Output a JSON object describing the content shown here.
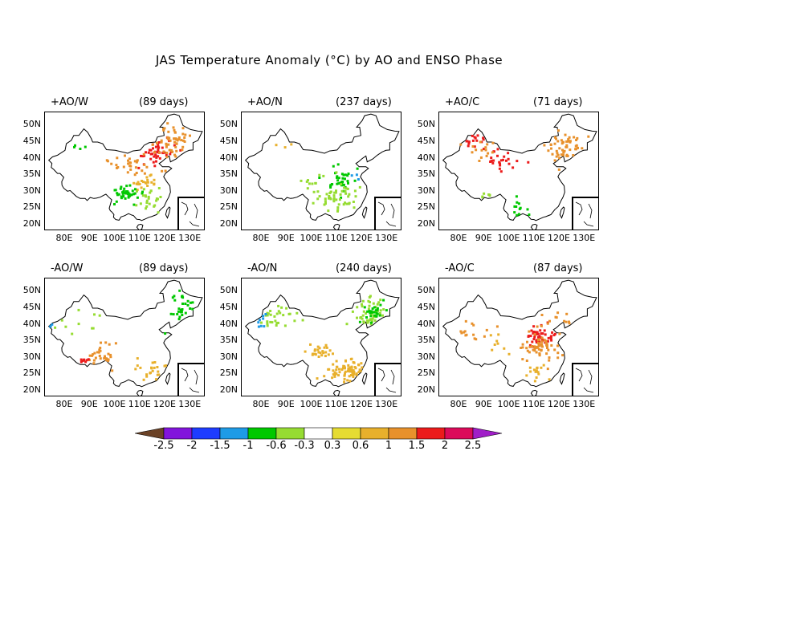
{
  "title": "JAS Temperature Anomaly (°C) by AO and ENSO Phase",
  "lat_ticks": [
    "50N",
    "45N",
    "40N",
    "35N",
    "30N",
    "25N",
    "20N"
  ],
  "lon_ticks": [
    "80E",
    "90E",
    "100E",
    "110E",
    "120E",
    "130E"
  ],
  "panels": [
    {
      "phase": "+AO/W",
      "days": "(89 days)",
      "clusters": [
        {
          "lon": 116,
          "lat": 42,
          "n": 45,
          "spread": [
            6,
            3
          ],
          "color": "#ec1b1b"
        },
        {
          "lon": 123,
          "lat": 45,
          "n": 55,
          "spread": [
            6,
            5
          ],
          "color": "#e8912c"
        },
        {
          "lon": 107,
          "lat": 38,
          "n": 30,
          "spread": [
            6,
            3
          ],
          "color": "#e8912c"
        },
        {
          "lon": 111,
          "lat": 33,
          "n": 22,
          "spread": [
            5,
            3
          ],
          "color": "#e8b02c"
        },
        {
          "lon": 104,
          "lat": 29,
          "n": 40,
          "spread": [
            5,
            3
          ],
          "color": "#00c800"
        },
        {
          "lon": 113,
          "lat": 27,
          "n": 25,
          "spread": [
            6,
            3
          ],
          "color": "#96dc32"
        },
        {
          "lon": 86,
          "lat": 44,
          "n": 4,
          "spread": [
            3,
            1
          ],
          "color": "#00c800"
        }
      ]
    },
    {
      "phase": "+AO/N",
      "days": "(237 days)",
      "clusters": [
        {
          "lon": 112,
          "lat": 34,
          "n": 35,
          "spread": [
            5,
            3
          ],
          "color": "#00c800"
        },
        {
          "lon": 111,
          "lat": 28,
          "n": 50,
          "spread": [
            7,
            4
          ],
          "color": "#96dc32"
        },
        {
          "lon": 100,
          "lat": 33,
          "n": 12,
          "spread": [
            4,
            3
          ],
          "color": "#96dc32"
        },
        {
          "lon": 116,
          "lat": 35,
          "n": 3,
          "spread": [
            2,
            1
          ],
          "color": "#1e9be6"
        },
        {
          "lon": 88,
          "lat": 44,
          "n": 3,
          "spread": [
            3,
            1
          ],
          "color": "#e8b02c"
        }
      ]
    },
    {
      "phase": "+AO/C",
      "days": "(71 days)",
      "clusters": [
        {
          "lon": 86,
          "lat": 46,
          "n": 15,
          "spread": [
            3,
            2
          ],
          "color": "#ec1b1b"
        },
        {
          "lon": 98,
          "lat": 40,
          "n": 25,
          "spread": [
            7,
            3
          ],
          "color": "#ec1b1b"
        },
        {
          "lon": 122,
          "lat": 43,
          "n": 55,
          "spread": [
            6,
            4
          ],
          "color": "#e8912c"
        },
        {
          "lon": 88,
          "lat": 42,
          "n": 15,
          "spread": [
            6,
            3
          ],
          "color": "#e8912c"
        },
        {
          "lon": 104,
          "lat": 24,
          "n": 12,
          "spread": [
            3,
            3
          ],
          "color": "#00c800"
        },
        {
          "lon": 90,
          "lat": 29,
          "n": 6,
          "spread": [
            3,
            1
          ],
          "color": "#96dc32"
        }
      ]
    },
    {
      "phase": "-AO/W",
      "days": "(89 days)",
      "clusters": [
        {
          "lon": 127,
          "lat": 45,
          "n": 30,
          "spread": [
            4,
            5
          ],
          "color": "#00c800"
        },
        {
          "lon": 95,
          "lat": 31,
          "n": 30,
          "spread": [
            5,
            3
          ],
          "color": "#e8912c"
        },
        {
          "lon": 88,
          "lat": 29,
          "n": 8,
          "spread": [
            2,
            1
          ],
          "color": "#ec1b1b"
        },
        {
          "lon": 113,
          "lat": 27,
          "n": 22,
          "spread": [
            7,
            3
          ],
          "color": "#e8b02c"
        },
        {
          "lon": 85,
          "lat": 40,
          "n": 10,
          "spread": [
            8,
            3
          ],
          "color": "#96dc32"
        },
        {
          "lon": 74,
          "lat": 39,
          "n": 3,
          "spread": [
            1,
            1
          ],
          "color": "#1e9be6"
        }
      ]
    },
    {
      "phase": "-AO/N",
      "days": "(240 days)",
      "clusters": [
        {
          "lon": 115,
          "lat": 26,
          "n": 75,
          "spread": [
            7,
            3
          ],
          "color": "#e8b02c"
        },
        {
          "lon": 103,
          "lat": 32,
          "n": 25,
          "spread": [
            5,
            2
          ],
          "color": "#e8b02c"
        },
        {
          "lon": 124,
          "lat": 43,
          "n": 50,
          "spread": [
            5,
            5
          ],
          "color": "#96dc32"
        },
        {
          "lon": 125,
          "lat": 42,
          "n": 25,
          "spread": [
            4,
            4
          ],
          "color": "#00c800"
        },
        {
          "lon": 87,
          "lat": 42,
          "n": 30,
          "spread": [
            7,
            4
          ],
          "color": "#96dc32"
        },
        {
          "lon": 80,
          "lat": 41,
          "n": 8,
          "spread": [
            3,
            2
          ],
          "color": "#1e9be6"
        }
      ]
    },
    {
      "phase": "-AO/C",
      "days": "(87 days)",
      "clusters": [
        {
          "lon": 112,
          "lat": 37,
          "n": 45,
          "spread": [
            5,
            3
          ],
          "color": "#ec1b1b"
        },
        {
          "lon": 112,
          "lat": 33,
          "n": 60,
          "spread": [
            7,
            4
          ],
          "color": "#e8912c"
        },
        {
          "lon": 112,
          "lat": 26,
          "n": 15,
          "spread": [
            4,
            3
          ],
          "color": "#e8b02c"
        },
        {
          "lon": 84,
          "lat": 38,
          "n": 15,
          "spread": [
            8,
            3
          ],
          "color": "#e8912c"
        },
        {
          "lon": 120,
          "lat": 42,
          "n": 12,
          "spread": [
            5,
            3
          ],
          "color": "#e8912c"
        },
        {
          "lon": 96,
          "lat": 35,
          "n": 8,
          "spread": [
            5,
            3
          ],
          "color": "#e8b02c"
        }
      ]
    }
  ],
  "colorbar": {
    "colors": [
      "#6b4226",
      "#8214dc",
      "#1e3cff",
      "#1e9be6",
      "#00c800",
      "#96dc32",
      "#ffffff",
      "#e6dc32",
      "#e8b02c",
      "#e8912c",
      "#ec1b1b",
      "#dc0a5a",
      "#a01ec8"
    ],
    "labels": [
      "-2.5",
      "-2",
      "-1.5",
      "-1",
      "-0.6",
      "-0.3",
      "0.3",
      "0.6",
      "1",
      "1.5",
      "2",
      "2.5"
    ]
  }
}
